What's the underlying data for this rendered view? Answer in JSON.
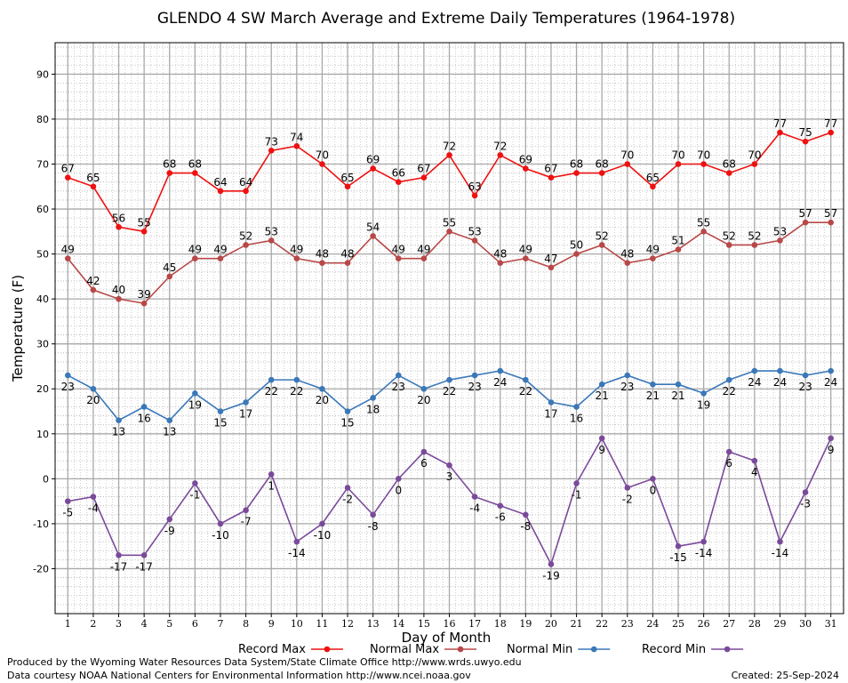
{
  "chart_data": {
    "type": "line",
    "title": "GLENDO 4 SW March Average and Extreme Daily Temperatures (1964-1978)",
    "xlabel": "Day of Month",
    "ylabel": "Temperature (F)",
    "xlim": [
      0.5,
      31.5
    ],
    "ylim": [
      -30,
      97
    ],
    "y_ticks": [
      -20,
      -10,
      0,
      10,
      20,
      30,
      40,
      50,
      60,
      70,
      80,
      90
    ],
    "x": [
      1,
      2,
      3,
      4,
      5,
      6,
      7,
      8,
      9,
      10,
      11,
      12,
      13,
      14,
      15,
      16,
      17,
      18,
      19,
      20,
      21,
      22,
      23,
      24,
      25,
      26,
      27,
      28,
      29,
      30,
      31
    ],
    "grid": true,
    "legend_position": "bottom",
    "series": [
      {
        "name": "Record Max",
        "color": "#ee1111",
        "label_pos": "above",
        "values": [
          67,
          65,
          56,
          55,
          68,
          68,
          64,
          64,
          73,
          74,
          70,
          65,
          69,
          66,
          67,
          72,
          63,
          72,
          69,
          67,
          68,
          68,
          70,
          65,
          70,
          70,
          68,
          70,
          77,
          75,
          77
        ]
      },
      {
        "name": "Normal Max",
        "color": "#b84848",
        "label_pos": "above",
        "values": [
          49,
          42,
          40,
          39,
          45,
          49,
          49,
          52,
          53,
          49,
          48,
          48,
          54,
          49,
          49,
          55,
          53,
          48,
          49,
          47,
          50,
          52,
          48,
          49,
          51,
          55,
          52,
          52,
          53,
          57,
          57
        ]
      },
      {
        "name": "Normal Min",
        "color": "#3a78b8",
        "label_pos": "below",
        "values": [
          23,
          20,
          13,
          16,
          13,
          19,
          15,
          17,
          22,
          22,
          20,
          15,
          18,
          23,
          20,
          22,
          23,
          24,
          22,
          17,
          16,
          21,
          23,
          21,
          21,
          19,
          22,
          24,
          24,
          23,
          24
        ]
      },
      {
        "name": "Record Min",
        "color": "#7a4a9a",
        "label_pos": "below",
        "values": [
          -5,
          -4,
          -17,
          -17,
          -9,
          -1,
          -10,
          -7,
          1,
          -14,
          -10,
          -2,
          -8,
          0,
          6,
          3,
          -4,
          -6,
          -8,
          -19,
          -1,
          9,
          -2,
          0,
          -15,
          -14,
          6,
          4,
          -14,
          -3,
          9
        ]
      }
    ]
  },
  "footer": {
    "credit_line1": "Produced by the Wyoming Water Resources Data System/State Climate Office http://www.wrds.uwyo.edu",
    "credit_line2": "Data courtesy NOAA National Centers for Environmental Information http://www.ncei.noaa.gov",
    "created": "Created:  25-Sep-2024"
  }
}
